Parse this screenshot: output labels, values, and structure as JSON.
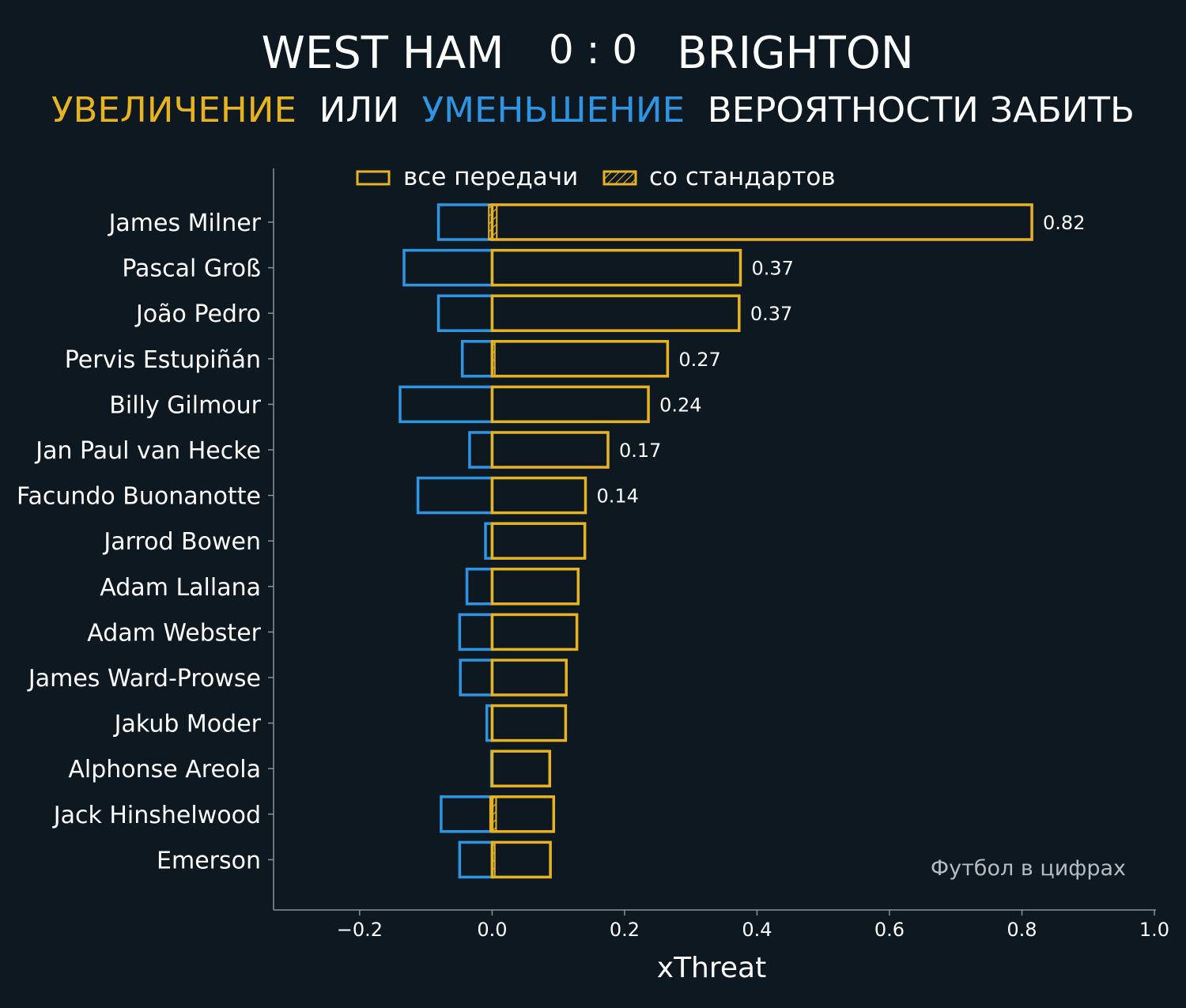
{
  "header": {
    "home_team": "WEST HAM",
    "score": "0 : 0",
    "away_team": "BRIGHTON",
    "subtitle_increase": "УВЕЛИЧЕНИЕ",
    "subtitle_or": "ИЛИ",
    "subtitle_decrease": "УМЕНЬШЕНИЕ",
    "subtitle_rest": "ВЕРОЯТНОСТИ ЗАБИТЬ"
  },
  "watermark": "Футбол в цифрах",
  "colors": {
    "background": "#0e1821",
    "increase": "#e8b321",
    "decrease": "#2d95e3",
    "text": "#ffffff",
    "axis": "#8a9198",
    "watermark": "#b5bcc2"
  },
  "chart_data": {
    "type": "bar",
    "orientation": "horizontal",
    "xlabel": "xThreat",
    "xlim": [
      -0.33,
      1.0
    ],
    "xticks": [
      -0.2,
      0.0,
      0.2,
      0.4,
      0.6,
      0.8,
      1.0
    ],
    "xtick_labels": [
      "−0.2",
      "0.0",
      "0.2",
      "0.4",
      "0.6",
      "0.8",
      "1.0"
    ],
    "legend": {
      "placement": "top",
      "entries": [
        "все передачи",
        "со стандартов"
      ]
    },
    "categories": [
      "James Milner",
      "Pascal Groß",
      "João Pedro",
      "Pervis Estupiñán",
      "Billy Gilmour",
      "Jan Paul van Hecke",
      "Facundo Buonanotte",
      "Jarrod Bowen",
      "Adam Lallana",
      "Adam Webster",
      "James Ward-Prowse",
      "Jakub Moder",
      "Alphonse Areola",
      "Jack Hinshelwood",
      "Emerson"
    ],
    "series": [
      {
        "name": "все передачи",
        "positive": [
          0.815,
          0.375,
          0.373,
          0.265,
          0.236,
          0.175,
          0.141,
          0.14,
          0.13,
          0.128,
          0.112,
          0.111,
          0.087,
          0.093,
          0.088
        ],
        "negative": [
          -0.081,
          -0.133,
          -0.081,
          -0.045,
          -0.139,
          -0.034,
          -0.112,
          -0.01,
          -0.038,
          -0.049,
          -0.048,
          -0.008,
          -0.001,
          -0.077,
          -0.049
        ]
      },
      {
        "name": "со стандартов",
        "positive": [
          0.007,
          0.0,
          0.0,
          0.004,
          0.0,
          0.0,
          0.0,
          0.0,
          0.0,
          0.0,
          0.0,
          0.0,
          0.0,
          0.006,
          0.004
        ],
        "negative": [
          -0.005,
          0.0,
          0.0,
          0.0,
          0.0,
          0.0,
          0.0,
          0.0,
          0.0,
          0.0,
          0.0,
          0.0,
          0.0,
          -0.003,
          0.0
        ]
      }
    ],
    "data_labels": [
      "0.82",
      "0.37",
      "0.37",
      "0.27",
      "0.24",
      "0.17",
      "0.14",
      "",
      "",
      "",
      "",
      "",
      "",
      "",
      ""
    ]
  }
}
